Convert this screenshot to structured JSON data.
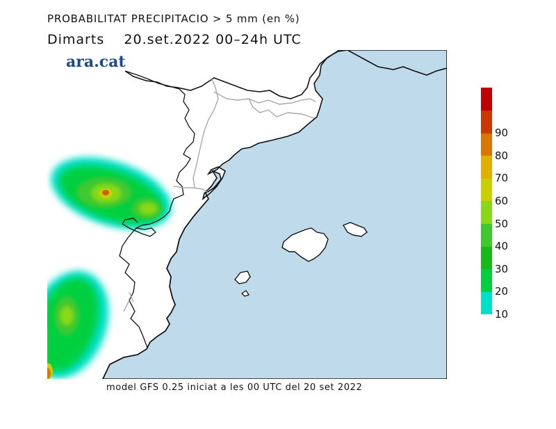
{
  "header": {
    "title": "PROBABILITAT PRECIPITACIO > 5 mm (en %)",
    "day": "Dimarts",
    "date_range": "20.set.2022 00–24h UTC"
  },
  "brand": {
    "name": "ara.cat"
  },
  "footer": {
    "text": "model GFS 0.25 iniciat a les 00 UTC del 20 set 2022"
  },
  "colors": {
    "sea": "#bfdaeb",
    "land": "#ffffff",
    "coast": "#111111",
    "border": "#a8a8a8"
  },
  "legend": {
    "bins": [
      {
        "label": "10",
        "color": "#00e0c8"
      },
      {
        "label": "20",
        "color": "#00d040"
      },
      {
        "label": "30",
        "color": "#18b818"
      },
      {
        "label": "40",
        "color": "#40c830"
      },
      {
        "label": "50",
        "color": "#88d818"
      },
      {
        "label": "60",
        "color": "#c8d000"
      },
      {
        "label": "70",
        "color": "#e0b000"
      },
      {
        "label": "80",
        "color": "#d87800"
      },
      {
        "label": "90",
        "color": "#c83800"
      },
      {
        "label": "",
        "color": "#c00000"
      }
    ]
  }
}
